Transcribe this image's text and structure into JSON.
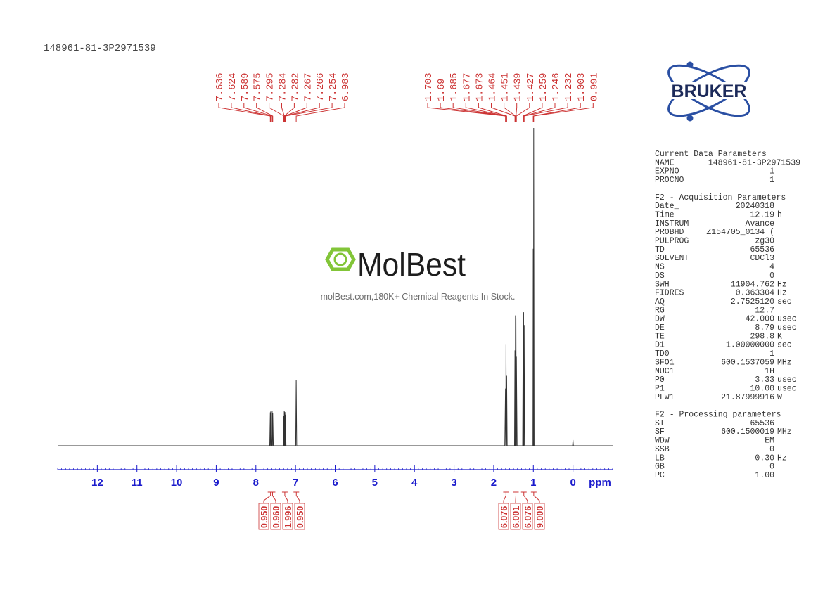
{
  "chart_data": {
    "type": "line",
    "title": "148961-81-3P2971539",
    "xlabel": "ppm",
    "xlim": [
      13,
      -1
    ],
    "xticks": [
      12,
      11,
      10,
      9,
      8,
      7,
      6,
      5,
      4,
      3,
      2,
      1,
      0
    ],
    "xminor": 0.1,
    "ylim": [
      0,
      100
    ],
    "color": "#333333",
    "x": [
      13,
      7.65,
      7.636,
      7.63,
      7.624,
      7.61,
      7.595,
      7.589,
      7.582,
      7.575,
      7.56,
      7.3,
      7.295,
      7.289,
      7.284,
      7.275,
      7.267,
      7.26,
      7.254,
      7.24,
      6.995,
      6.983,
      6.97,
      1.72,
      1.703,
      1.695,
      1.69,
      1.68,
      1.673,
      1.66,
      1.475,
      1.464,
      1.457,
      1.451,
      1.445,
      1.439,
      1.43,
      1.427,
      1.41,
      1.27,
      1.259,
      1.252,
      1.246,
      1.24,
      1.232,
      1.22,
      1.01,
      1.003,
      0.997,
      0.991,
      0.98,
      0.01,
      0,
      -0.01,
      -1
    ],
    "values": [
      0,
      0,
      10.5,
      0,
      10.8,
      0,
      0,
      10.8,
      0,
      10.3,
      0,
      0,
      9.5,
      0,
      11,
      0,
      10.6,
      0,
      9.8,
      0,
      0,
      20.6,
      0,
      0,
      18,
      0,
      32,
      0,
      22,
      0,
      0,
      30,
      0,
      41,
      0,
      40,
      0,
      28,
      0,
      0,
      33,
      0,
      42,
      0,
      38,
      0,
      0,
      62,
      0,
      100,
      0,
      0,
      1.8,
      0,
      0
    ],
    "peaks": [
      [
        7.636,
        7.624,
        7.589,
        7.575,
        7.295,
        7.284,
        7.282,
        7.267,
        7.266,
        7.254,
        6.983
      ],
      [
        1.703,
        1.69,
        1.685,
        1.677,
        1.673,
        1.464,
        1.451,
        1.439,
        1.427,
        1.259,
        1.246,
        1.232,
        1.003,
        0.991
      ]
    ],
    "integrals": {
      "values": [
        0.95,
        0.96,
        1.996,
        0.95,
        6.076,
        6.001,
        6.076,
        9
      ],
      "value_labels": [
        "0.950",
        "0.960",
        "1.996",
        "0.950",
        "6.076",
        "6.001",
        "6.076",
        "9.000"
      ],
      "ppm": [
        7.63,
        7.58,
        7.27,
        6.98,
        1.69,
        1.44,
        1.24,
        0.99
      ]
    }
  },
  "logo": "BRUKER",
  "watermark": {
    "brand": "MolBest",
    "tagline": "molBest.com,180K+ Chemical Reagents In Stock."
  },
  "parameters": [
    {
      "title": "Current Data Parameters",
      "rows": [
        [
          "NAME",
          "148961-81-3P2971539"
        ],
        [
          "EXPNO",
          "1"
        ],
        [
          "PROCNO",
          "1"
        ]
      ]
    },
    {
      "title": "F2 - Acquisition Parameters",
      "rows": [
        [
          "Date_",
          "20240318"
        ],
        [
          "Time",
          "12.19",
          "h"
        ],
        [
          "INSTRUM",
          "Avance"
        ],
        [
          "PROBHD",
          "Z154705_0134 ("
        ],
        [
          "PULPROG",
          "zg30"
        ],
        [
          "TD",
          "65536"
        ],
        [
          "SOLVENT",
          "CDCl3"
        ],
        [
          "NS",
          "4"
        ],
        [
          "DS",
          "0"
        ],
        [
          "SWH",
          "11904.762",
          "Hz"
        ],
        [
          "FIDRES",
          "0.363304",
          "Hz"
        ],
        [
          "AQ",
          "2.7525120",
          "sec"
        ],
        [
          "RG",
          "12.7"
        ],
        [
          "DW",
          "42.000",
          "usec"
        ],
        [
          "DE",
          "8.79",
          "usec"
        ],
        [
          "TE",
          "298.8",
          "K"
        ],
        [
          "D1",
          "1.00000000",
          "sec"
        ],
        [
          "TD0",
          "1"
        ],
        [
          "SFO1",
          "600.1537059",
          "MHz"
        ],
        [
          "NUC1",
          "1H"
        ],
        [
          "P0",
          "3.33",
          "usec"
        ],
        [
          "P1",
          "10.00",
          "usec"
        ],
        [
          "PLW1",
          "21.87999916",
          "W"
        ]
      ]
    },
    {
      "title": "F2 - Processing parameters",
      "rows": [
        [
          "SI",
          "65536"
        ],
        [
          "SF",
          "600.1500019",
          "MHz"
        ],
        [
          "WDW",
          "EM"
        ],
        [
          "SSB",
          "0"
        ],
        [
          "LB",
          "0.30",
          "Hz"
        ],
        [
          "GB",
          "0"
        ],
        [
          "PC",
          "1.00"
        ]
      ]
    }
  ]
}
